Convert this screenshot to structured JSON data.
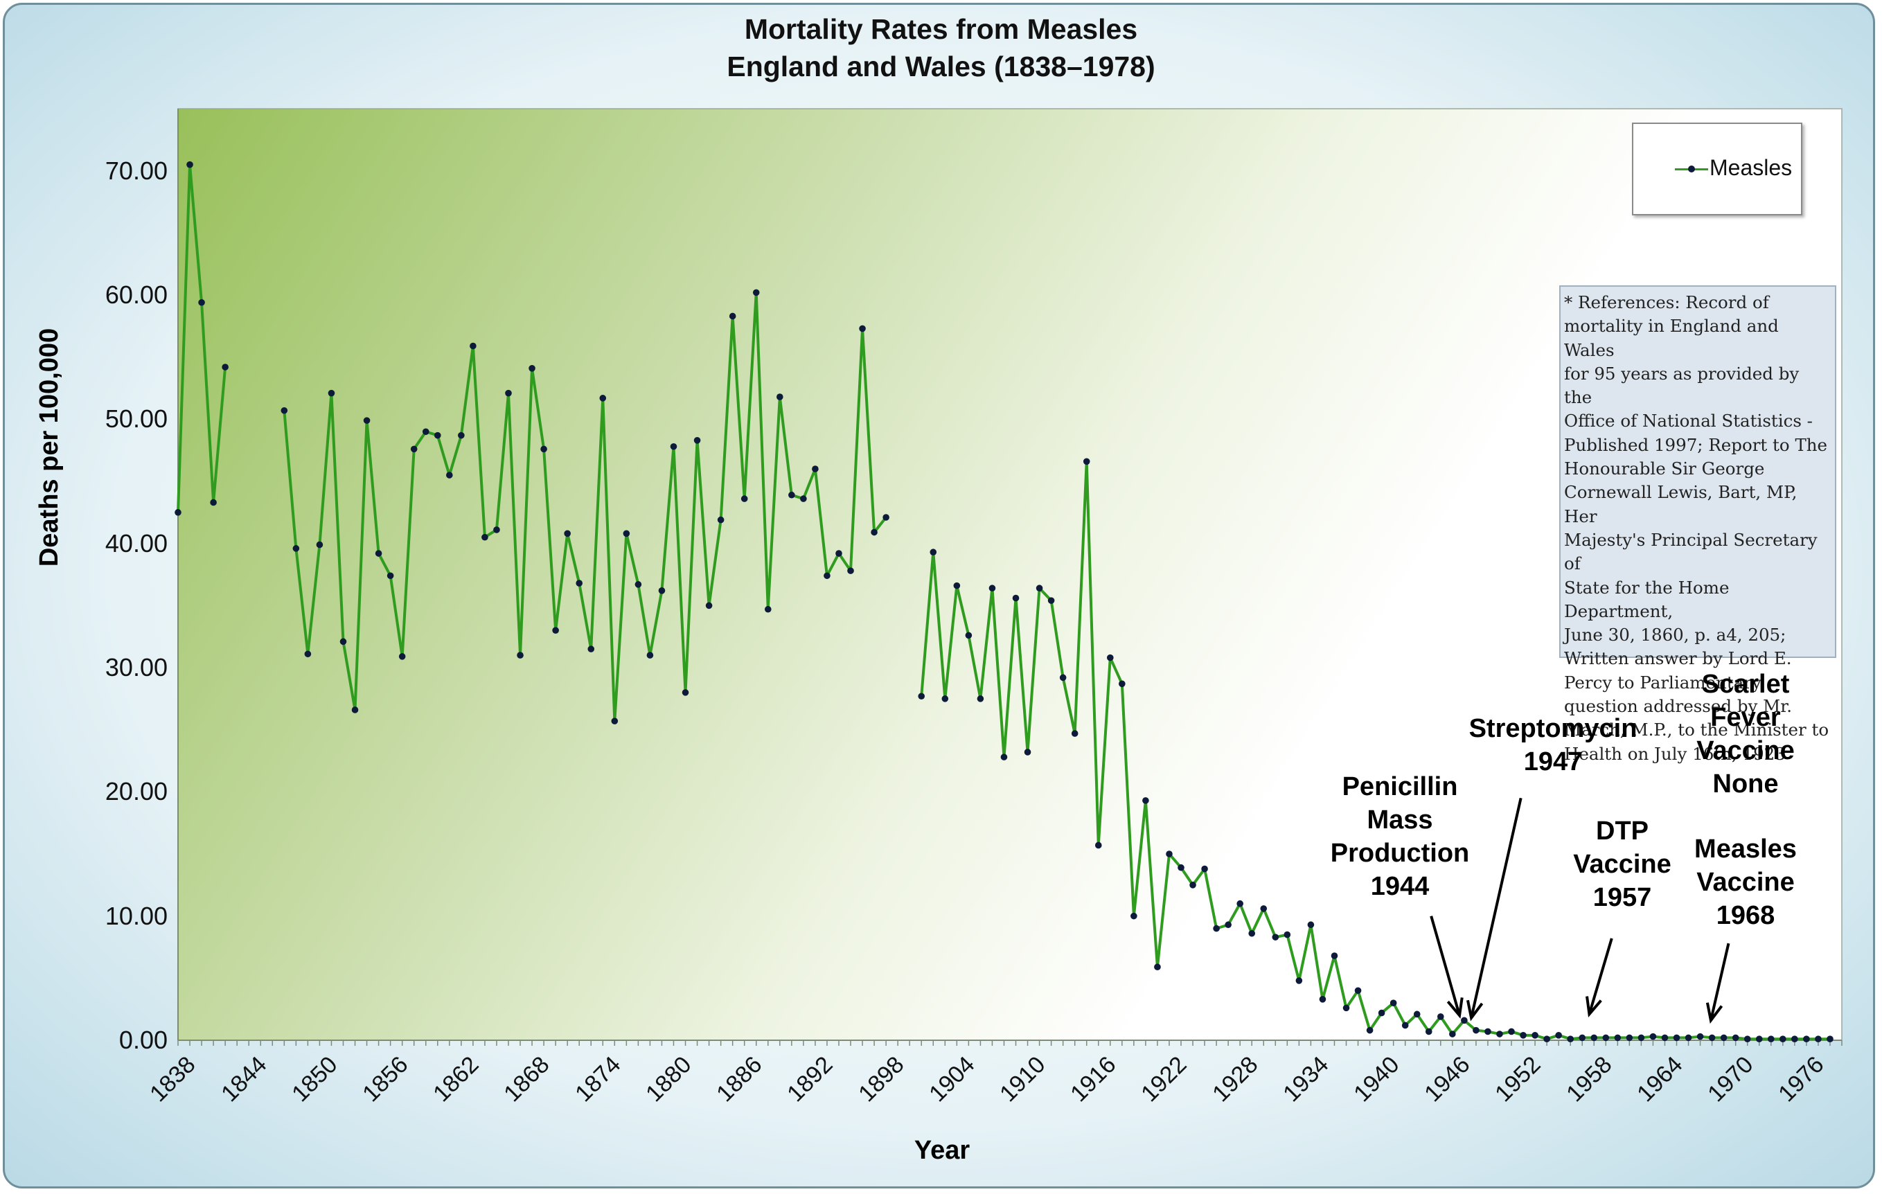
{
  "chart_data": {
    "type": "line",
    "title": "Mortality Rates from Measles",
    "subtitle": "England and Wales (1838–1978)",
    "xlabel": "Year",
    "ylabel": "Deaths per 100,000",
    "ylim": [
      0,
      75
    ],
    "xlim": [
      1838,
      1979
    ],
    "y_ticks": [
      "0.00",
      "10.00",
      "20.00",
      "30.00",
      "40.00",
      "50.00",
      "60.00",
      "70.00"
    ],
    "x_ticks": [
      "1838",
      "1844",
      "1850",
      "1856",
      "1862",
      "1868",
      "1874",
      "1880",
      "1886",
      "1892",
      "1898",
      "1904",
      "1910",
      "1916",
      "1922",
      "1928",
      "1934",
      "1940",
      "1946",
      "1952",
      "1958",
      "1964",
      "1970",
      "1976"
    ],
    "legend_position": "top-right",
    "series": [
      {
        "name": "Measles",
        "color": "#2f9c1f",
        "marker_color": "#0d1a3a",
        "segments": [
          {
            "x": [
              1838,
              1839,
              1840,
              1841,
              1842
            ],
            "y": [
              42.5,
              70.5,
              59.4,
              43.3,
              54.2
            ]
          },
          {
            "x": [
              1847,
              1848,
              1849,
              1850,
              1851,
              1852,
              1853,
              1854,
              1855,
              1856,
              1857,
              1858,
              1859,
              1860,
              1861,
              1862,
              1863,
              1864,
              1865,
              1866,
              1867,
              1868,
              1869,
              1870,
              1871,
              1872,
              1873,
              1874,
              1875,
              1876,
              1877,
              1878,
              1879,
              1880,
              1881,
              1882,
              1883,
              1884,
              1885,
              1886,
              1887,
              1888,
              1889,
              1890,
              1891,
              1892,
              1893,
              1894,
              1895,
              1896,
              1897,
              1898
            ],
            "y": [
              50.7,
              39.6,
              31.1,
              39.9,
              52.1,
              32.1,
              26.6,
              49.9,
              39.2,
              37.4,
              30.9,
              47.6,
              49.0,
              48.7,
              45.5,
              48.7,
              55.9,
              40.5,
              41.1,
              52.1,
              31.0,
              54.1,
              47.6,
              33.0,
              40.8,
              36.8,
              31.5,
              51.7,
              25.7,
              40.8,
              36.7,
              31.0,
              36.2,
              47.8,
              28.0,
              48.3,
              35.0,
              41.9,
              58.3,
              43.6,
              60.2,
              34.7,
              51.8,
              43.9,
              43.6,
              46.0,
              37.4,
              39.2,
              37.8,
              57.3,
              40.9,
              42.1
            ]
          },
          {
            "x": [
              1901,
              1902,
              1903,
              1904,
              1905,
              1906,
              1907,
              1908,
              1909,
              1910,
              1911,
              1912,
              1913,
              1914,
              1915,
              1916,
              1917,
              1918,
              1919,
              1920,
              1921,
              1922,
              1923,
              1924,
              1925,
              1926,
              1927,
              1928,
              1929,
              1930,
              1931,
              1932,
              1933,
              1934,
              1935,
              1936,
              1937,
              1938,
              1939,
              1940,
              1941,
              1942,
              1943,
              1944,
              1945,
              1946,
              1947,
              1948,
              1949,
              1950,
              1951,
              1952,
              1953,
              1954,
              1955,
              1956,
              1957,
              1958,
              1959,
              1960,
              1961,
              1962,
              1963,
              1964,
              1965,
              1966,
              1967,
              1968,
              1969,
              1970,
              1971,
              1972,
              1973,
              1974,
              1975,
              1976,
              1977,
              1978
            ],
            "y": [
              27.7,
              39.3,
              27.5,
              36.6,
              32.6,
              27.5,
              36.4,
              22.8,
              35.6,
              23.2,
              36.4,
              35.4,
              29.2,
              24.7,
              46.6,
              15.7,
              30.8,
              28.7,
              10.0,
              19.3,
              5.9,
              15.0,
              13.9,
              12.5,
              13.8,
              9.0,
              9.3,
              11.0,
              8.6,
              10.6,
              8.3,
              8.5,
              4.8,
              9.3,
              3.3,
              6.8,
              2.6,
              4.0,
              0.8,
              2.2,
              3.0,
              1.2,
              2.1,
              0.7,
              1.9,
              0.5,
              1.6,
              0.8,
              0.7,
              0.5,
              0.7,
              0.4,
              0.4,
              0.1,
              0.4,
              0.1,
              0.2,
              0.2,
              0.2,
              0.2,
              0.2,
              0.2,
              0.3,
              0.2,
              0.2,
              0.2,
              0.3,
              0.2,
              0.2,
              0.2,
              0.1,
              0.1,
              0.1,
              0.1,
              0.1,
              0.1,
              0.1,
              0.1
            ]
          }
        ]
      }
    ],
    "annotations": [
      {
        "lines": [
          "Penicillin",
          "Mass",
          "Production",
          "1944"
        ],
        "arrow_from": [
          1944.2,
          10.0
        ],
        "arrow_to": [
          1946.6,
          2.0
        ]
      },
      {
        "lines": [
          "Streptomycin",
          "1947"
        ],
        "arrow_from": [
          1951.8,
          19.5
        ],
        "arrow_to": [
          1947.6,
          1.8
        ]
      },
      {
        "lines": [
          "DTP",
          "Vaccine",
          "1957"
        ],
        "arrow_from": [
          1959.5,
          8.2
        ],
        "arrow_to": [
          1957.6,
          2.1
        ]
      },
      {
        "lines": [
          "Scarlet",
          "Fever",
          "Vaccine",
          "None"
        ]
      },
      {
        "lines": [
          "Measles",
          "Vaccine",
          "1968"
        ],
        "arrow_from": [
          1969.4,
          7.8
        ],
        "arrow_to": [
          1967.9,
          1.6
        ]
      }
    ],
    "reference_note": [
      "* References: Record of",
      "mortality in England and Wales",
      "for 95 years as provided by the",
      "Office of National Statistics -",
      "Published 1997; Report to The",
      "Honourable Sir George",
      "Cornewall Lewis, Bart, MP, Her",
      "Majesty's Principal Secretary of",
      "State for the Home Department,",
      "June 30, 1860, p. a4, 205;",
      "Written answer by Lord E.",
      "Percy to Parliamentary",
      "question addressed by Mr.",
      "March, M.P., to the Minister to",
      "Health on July 16th, 1923"
    ]
  }
}
